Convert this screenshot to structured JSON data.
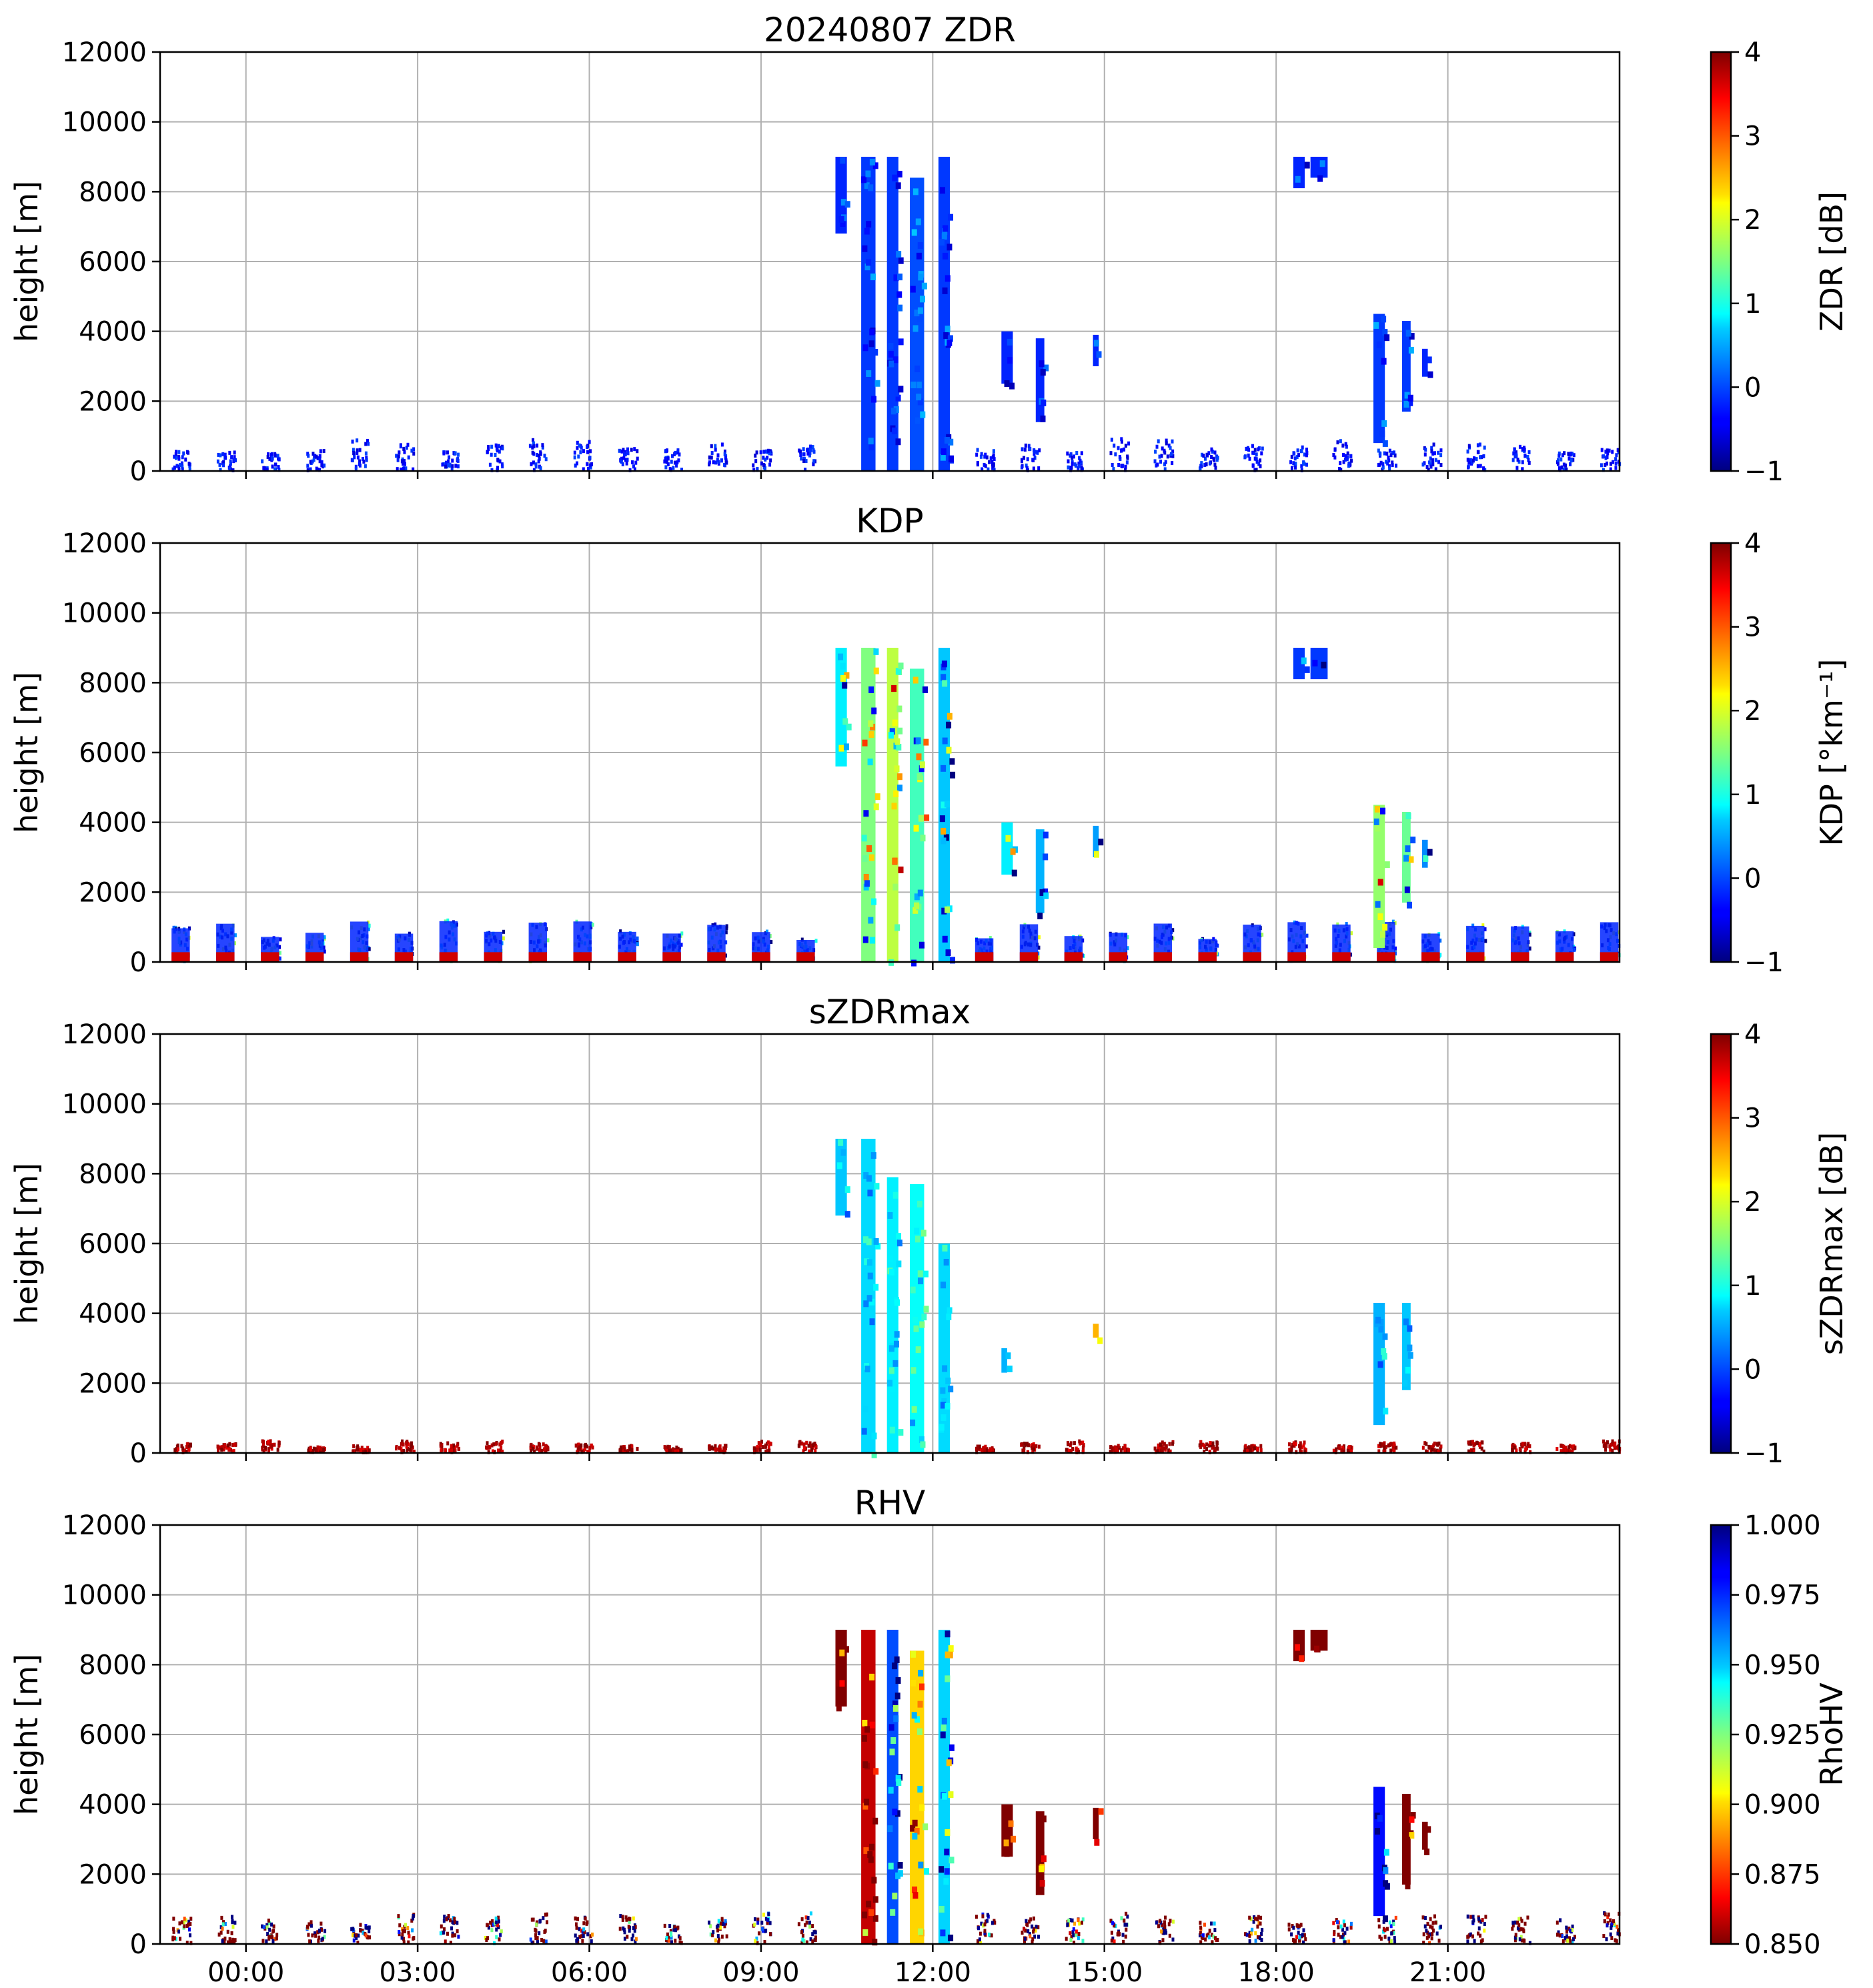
{
  "chart_data": [
    {
      "type": "heatmap",
      "title": "20240807 ZDR",
      "variable": "ZDR",
      "ylabel": "height [m]",
      "ylim": [
        0,
        12000
      ],
      "yticks": [
        0,
        2000,
        4000,
        6000,
        8000,
        10000,
        12000
      ],
      "xlim_hours": [
        -1.5,
        24
      ],
      "colorbar": {
        "label": "ZDR [dB]",
        "range": [
          -1,
          4
        ],
        "ticks": [
          "−1",
          "0",
          "1",
          "2",
          "3",
          "4"
        ],
        "colormap": "jet"
      },
      "echoes": [
        {
          "t0": 10.3,
          "t1": 10.5,
          "h0": 6800,
          "h1": 9000,
          "value": -0.2
        },
        {
          "t0": 10.75,
          "t1": 11.0,
          "h0": 0,
          "h1": 9000,
          "value": -0.1
        },
        {
          "t0": 11.2,
          "t1": 11.4,
          "h0": 0,
          "h1": 9000,
          "value": -0.1
        },
        {
          "t0": 11.6,
          "t1": 11.85,
          "h0": 0,
          "h1": 8400,
          "value": 0.0
        },
        {
          "t0": 12.1,
          "t1": 12.3,
          "h0": 0,
          "h1": 9000,
          "value": -0.1
        },
        {
          "t0": 13.2,
          "t1": 13.4,
          "h0": 2500,
          "h1": 4000,
          "value": -0.2
        },
        {
          "t0": 13.8,
          "t1": 13.95,
          "h0": 1400,
          "h1": 3800,
          "value": -0.2
        },
        {
          "t0": 14.8,
          "t1": 14.9,
          "h0": 3000,
          "h1": 3900,
          "value": -0.2
        },
        {
          "t0": 18.3,
          "t1": 18.5,
          "h0": 8100,
          "h1": 9000,
          "value": -0.2
        },
        {
          "t0": 18.6,
          "t1": 18.9,
          "h0": 8400,
          "h1": 9000,
          "value": -0.2
        },
        {
          "t0": 19.7,
          "t1": 19.9,
          "h0": 800,
          "h1": 4500,
          "value": -0.1
        },
        {
          "t0": 20.2,
          "t1": 20.35,
          "h0": 1700,
          "h1": 4300,
          "value": -0.1
        },
        {
          "t0": 20.55,
          "t1": 20.65,
          "h0": 2700,
          "h1": 3500,
          "value": -0.2
        }
      ],
      "boundary_layer_value": -0.3,
      "boundary_layer_top_m": 700
    },
    {
      "type": "heatmap",
      "title": "KDP",
      "variable": "KDP",
      "ylabel": "height [m]",
      "ylim": [
        0,
        12000
      ],
      "yticks": [
        0,
        2000,
        4000,
        6000,
        8000,
        10000,
        12000
      ],
      "xlim_hours": [
        -1.5,
        24
      ],
      "colorbar": {
        "label": "KDP [°km⁻¹]",
        "range": [
          -1,
          4
        ],
        "ticks": [
          "−1",
          "0",
          "1",
          "2",
          "3",
          "4"
        ],
        "colormap": "jet"
      },
      "echoes": [
        {
          "t0": 10.3,
          "t1": 10.5,
          "h0": 5600,
          "h1": 9000,
          "value": 0.8
        },
        {
          "t0": 10.75,
          "t1": 11.0,
          "h0": 0,
          "h1": 9000,
          "value": 1.5
        },
        {
          "t0": 11.2,
          "t1": 11.4,
          "h0": 0,
          "h1": 9000,
          "value": 1.8
        },
        {
          "t0": 11.6,
          "t1": 11.85,
          "h0": 0,
          "h1": 8400,
          "value": 1.2
        },
        {
          "t0": 12.1,
          "t1": 12.3,
          "h0": 0,
          "h1": 9000,
          "value": 0.6
        },
        {
          "t0": 13.2,
          "t1": 13.4,
          "h0": 2500,
          "h1": 4000,
          "value": 0.8
        },
        {
          "t0": 13.8,
          "t1": 13.95,
          "h0": 1400,
          "h1": 3800,
          "value": 0.5
        },
        {
          "t0": 14.8,
          "t1": 14.9,
          "h0": 3000,
          "h1": 3900,
          "value": 0.4
        },
        {
          "t0": 18.3,
          "t1": 18.5,
          "h0": 8100,
          "h1": 9000,
          "value": -0.1
        },
        {
          "t0": 18.6,
          "t1": 18.9,
          "h0": 8100,
          "h1": 9000,
          "value": -0.1
        },
        {
          "t0": 19.7,
          "t1": 19.9,
          "h0": 400,
          "h1": 4500,
          "value": 1.6
        },
        {
          "t0": 20.2,
          "t1": 20.35,
          "h0": 1700,
          "h1": 4300,
          "value": 1.4
        },
        {
          "t0": 20.55,
          "t1": 20.65,
          "h0": 2700,
          "h1": 3500,
          "value": 0.3
        }
      ],
      "boundary_layer_value": 0.2,
      "boundary_layer_top_m": 900
    },
    {
      "type": "heatmap",
      "title": "sZDRmax",
      "variable": "sZDRmax",
      "ylabel": "height [m]",
      "ylim": [
        0,
        12000
      ],
      "yticks": [
        0,
        2000,
        4000,
        6000,
        8000,
        10000,
        12000
      ],
      "xlim_hours": [
        -1.5,
        24
      ],
      "colorbar": {
        "label": "sZDRmax [dB]",
        "range": [
          -1,
          4
        ],
        "ticks": [
          "−1",
          "0",
          "1",
          "2",
          "3",
          "4"
        ],
        "colormap": "jet"
      },
      "echoes": [
        {
          "t0": 10.3,
          "t1": 10.5,
          "h0": 6800,
          "h1": 9000,
          "value": 0.6
        },
        {
          "t0": 10.75,
          "t1": 11.0,
          "h0": 0,
          "h1": 9000,
          "value": 0.7
        },
        {
          "t0": 11.2,
          "t1": 11.4,
          "h0": 0,
          "h1": 7900,
          "value": 0.8
        },
        {
          "t0": 11.6,
          "t1": 11.85,
          "h0": 0,
          "h1": 7700,
          "value": 0.9
        },
        {
          "t0": 12.1,
          "t1": 12.3,
          "h0": 0,
          "h1": 6000,
          "value": 0.7
        },
        {
          "t0": 13.2,
          "t1": 13.3,
          "h0": 2300,
          "h1": 3000,
          "value": 0.5
        },
        {
          "t0": 14.8,
          "t1": 14.9,
          "h0": 3300,
          "h1": 3700,
          "value": 2.5
        },
        {
          "t0": 19.7,
          "t1": 19.9,
          "h0": 800,
          "h1": 4300,
          "value": 0.5
        },
        {
          "t0": 20.2,
          "t1": 20.35,
          "h0": 1800,
          "h1": 4300,
          "value": 0.6
        }
      ],
      "boundary_layer_value": 3.8,
      "boundary_layer_top_m": 250
    },
    {
      "type": "heatmap",
      "title": "RHV",
      "variable": "RhoHV",
      "ylabel": "height [m]",
      "xlabel_ticks": [
        "00:00",
        "03:00",
        "06:00",
        "09:00",
        "12:00",
        "15:00",
        "18:00",
        "21:00"
      ],
      "ylim": [
        0,
        12000
      ],
      "yticks": [
        0,
        2000,
        4000,
        6000,
        8000,
        10000,
        12000
      ],
      "xlim_hours": [
        -1.5,
        24
      ],
      "colorbar": {
        "label": "RhoHV",
        "range": [
          0.85,
          1.0
        ],
        "ticks": [
          "0.850",
          "0.875",
          "0.900",
          "0.925",
          "0.950",
          "0.975",
          "1.000"
        ],
        "colormap": "jet_r"
      },
      "echoes": [
        {
          "t0": 10.3,
          "t1": 10.5,
          "h0": 6800,
          "h1": 9000,
          "value": 0.85
        },
        {
          "t0": 10.75,
          "t1": 11.0,
          "h0": 0,
          "h1": 9000,
          "value": 0.86
        },
        {
          "t0": 11.2,
          "t1": 11.4,
          "h0": 0,
          "h1": 9000,
          "value": 0.97
        },
        {
          "t0": 11.6,
          "t1": 11.85,
          "h0": 0,
          "h1": 8400,
          "value": 0.9
        },
        {
          "t0": 12.1,
          "t1": 12.3,
          "h0": 0,
          "h1": 9000,
          "value": 0.95
        },
        {
          "t0": 13.2,
          "t1": 13.4,
          "h0": 2500,
          "h1": 4000,
          "value": 0.85
        },
        {
          "t0": 13.8,
          "t1": 13.95,
          "h0": 1400,
          "h1": 3800,
          "value": 0.85
        },
        {
          "t0": 14.8,
          "t1": 14.9,
          "h0": 3000,
          "h1": 3900,
          "value": 0.85
        },
        {
          "t0": 18.3,
          "t1": 18.5,
          "h0": 8100,
          "h1": 9000,
          "value": 0.85
        },
        {
          "t0": 18.6,
          "t1": 18.9,
          "h0": 8400,
          "h1": 9000,
          "value": 0.85
        },
        {
          "t0": 19.7,
          "t1": 19.9,
          "h0": 800,
          "h1": 4500,
          "value": 0.98
        },
        {
          "t0": 20.2,
          "t1": 20.35,
          "h0": 1700,
          "h1": 4300,
          "value": 0.85
        },
        {
          "t0": 20.55,
          "t1": 20.65,
          "h0": 2700,
          "h1": 3500,
          "value": 0.85
        }
      ],
      "boundary_layer_value": 0.85,
      "boundary_layer_top_m": 700
    }
  ]
}
